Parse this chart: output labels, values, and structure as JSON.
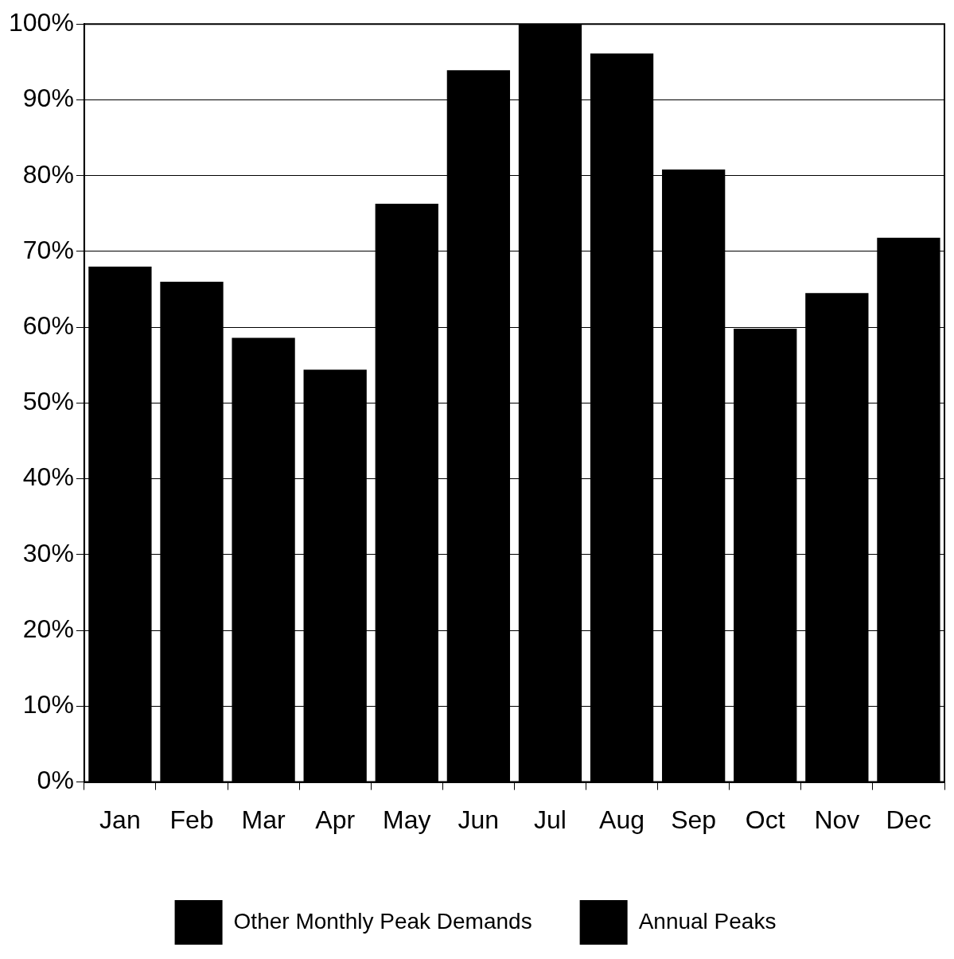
{
  "chart_data": {
    "type": "bar",
    "stacked": true,
    "categories": [
      "Jan",
      "Feb",
      "Mar",
      "Apr",
      "May",
      "Jun",
      "Jul",
      "Aug",
      "Sep",
      "Oct",
      "Nov",
      "Dec"
    ],
    "series": [
      {
        "name": "Other Monthly Peak Demands",
        "color": "#000000",
        "values": [
          68,
          66,
          58.6,
          54.4,
          76.3,
          93.9,
          null,
          96.1,
          80.8,
          59.8,
          64.5,
          71.8
        ]
      },
      {
        "name": "Annual Peaks",
        "color": "#000000",
        "values": [
          null,
          null,
          null,
          null,
          null,
          null,
          100,
          null,
          null,
          null,
          null,
          null
        ]
      }
    ],
    "ylim": [
      0,
      100
    ],
    "yticks": [
      {
        "value": 0,
        "label": "0%"
      },
      {
        "value": 10,
        "label": "10%"
      },
      {
        "value": 20,
        "label": "20%"
      },
      {
        "value": 30,
        "label": "30%"
      },
      {
        "value": 40,
        "label": "40%"
      },
      {
        "value": 50,
        "label": "50%"
      },
      {
        "value": 60,
        "label": "60%"
      },
      {
        "value": 70,
        "label": "70%"
      },
      {
        "value": 80,
        "label": "80%"
      },
      {
        "value": 90,
        "label": "90%"
      },
      {
        "value": 100,
        "label": "100%"
      }
    ],
    "grid": "y",
    "legend": "bottom"
  }
}
